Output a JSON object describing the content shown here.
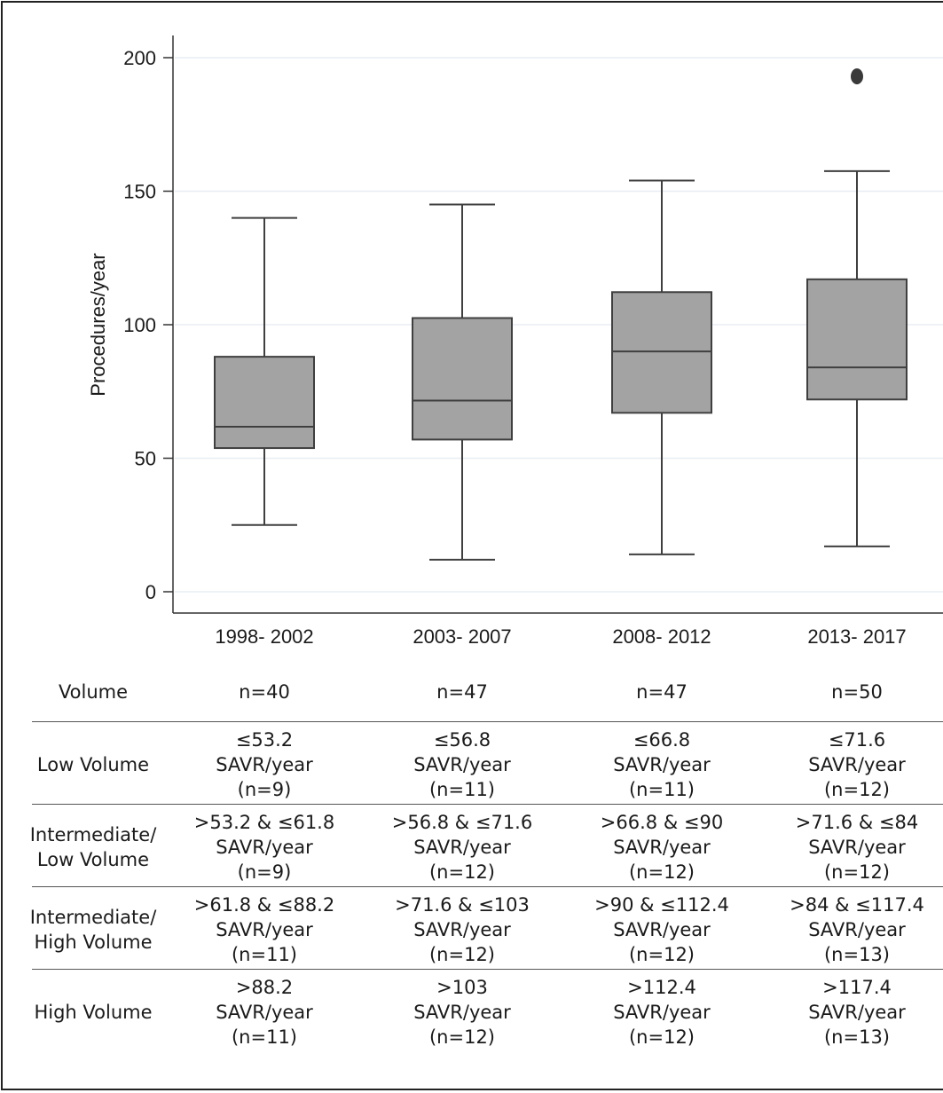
{
  "chart_data": {
    "type": "box",
    "title": "",
    "xlabel": "",
    "ylabel": "Procedures/year",
    "ylim": [
      0,
      200
    ],
    "yticks": [
      0,
      50,
      100,
      150,
      200
    ],
    "grid": true,
    "categories": [
      "1998- 2002",
      "2003- 2007",
      "2008- 2012",
      "2013- 2017"
    ],
    "boxes": [
      {
        "whisker_low": 25,
        "q1": 53.8,
        "median": 61.8,
        "q3": 88,
        "whisker_high": 140,
        "outliers": []
      },
      {
        "whisker_low": 12,
        "q1": 57,
        "median": 71.6,
        "q3": 102.5,
        "whisker_high": 145,
        "outliers": []
      },
      {
        "whisker_low": 14,
        "q1": 67,
        "median": 90,
        "q3": 112.2,
        "whisker_high": 154,
        "outliers": []
      },
      {
        "whisker_low": 17,
        "q1": 72,
        "median": 84,
        "q3": 117,
        "whisker_high": 157.5,
        "outliers": [
          193
        ]
      }
    ],
    "colors": {
      "box_fill": "#a3a3a3",
      "line": "#3f3f3f",
      "grid": "#e8eef3"
    }
  },
  "table": {
    "rows": [
      {
        "label": [
          "Volume"
        ],
        "cells": [
          [
            "n=40"
          ],
          [
            "n=47"
          ],
          [
            "n=47"
          ],
          [
            "n=50"
          ]
        ]
      },
      {
        "label": [
          "Low Volume"
        ],
        "cells": [
          [
            "≤53.2",
            "SAVR/year",
            "(n=9)"
          ],
          [
            "≤56.8",
            "SAVR/year",
            "(n=11)"
          ],
          [
            "≤66.8",
            "SAVR/year",
            "(n=11)"
          ],
          [
            "≤71.6",
            "SAVR/year",
            "(n=12)"
          ]
        ]
      },
      {
        "label": [
          "Intermediate/",
          "Low Volume"
        ],
        "cells": [
          [
            ">53.2 & ≤61.8",
            "SAVR/year",
            "(n=9)"
          ],
          [
            ">56.8 & ≤71.6",
            "SAVR/year",
            "(n=12)"
          ],
          [
            ">66.8 & ≤90",
            "SAVR/year",
            "(n=12)"
          ],
          [
            ">71.6 & ≤84",
            "SAVR/year",
            "(n=12)"
          ]
        ]
      },
      {
        "label": [
          "Intermediate/",
          "High Volume"
        ],
        "cells": [
          [
            ">61.8 & ≤88.2",
            "SAVR/year",
            "(n=11)"
          ],
          [
            ">71.6 & ≤103",
            "SAVR/year",
            "(n=12)"
          ],
          [
            ">90 & ≤112.4",
            "SAVR/year",
            "(n=12)"
          ],
          [
            ">84 & ≤117.4",
            "SAVR/year",
            "(n=13)"
          ]
        ]
      },
      {
        "label": [
          "High Volume"
        ],
        "cells": [
          [
            ">88.2",
            "SAVR/year",
            "(n=11)"
          ],
          [
            ">103",
            "SAVR/year",
            "(n=12)"
          ],
          [
            ">112.4",
            "SAVR/year",
            "(n=12)"
          ],
          [
            ">117.4",
            "SAVR/year",
            "(n=13)"
          ]
        ]
      }
    ]
  }
}
